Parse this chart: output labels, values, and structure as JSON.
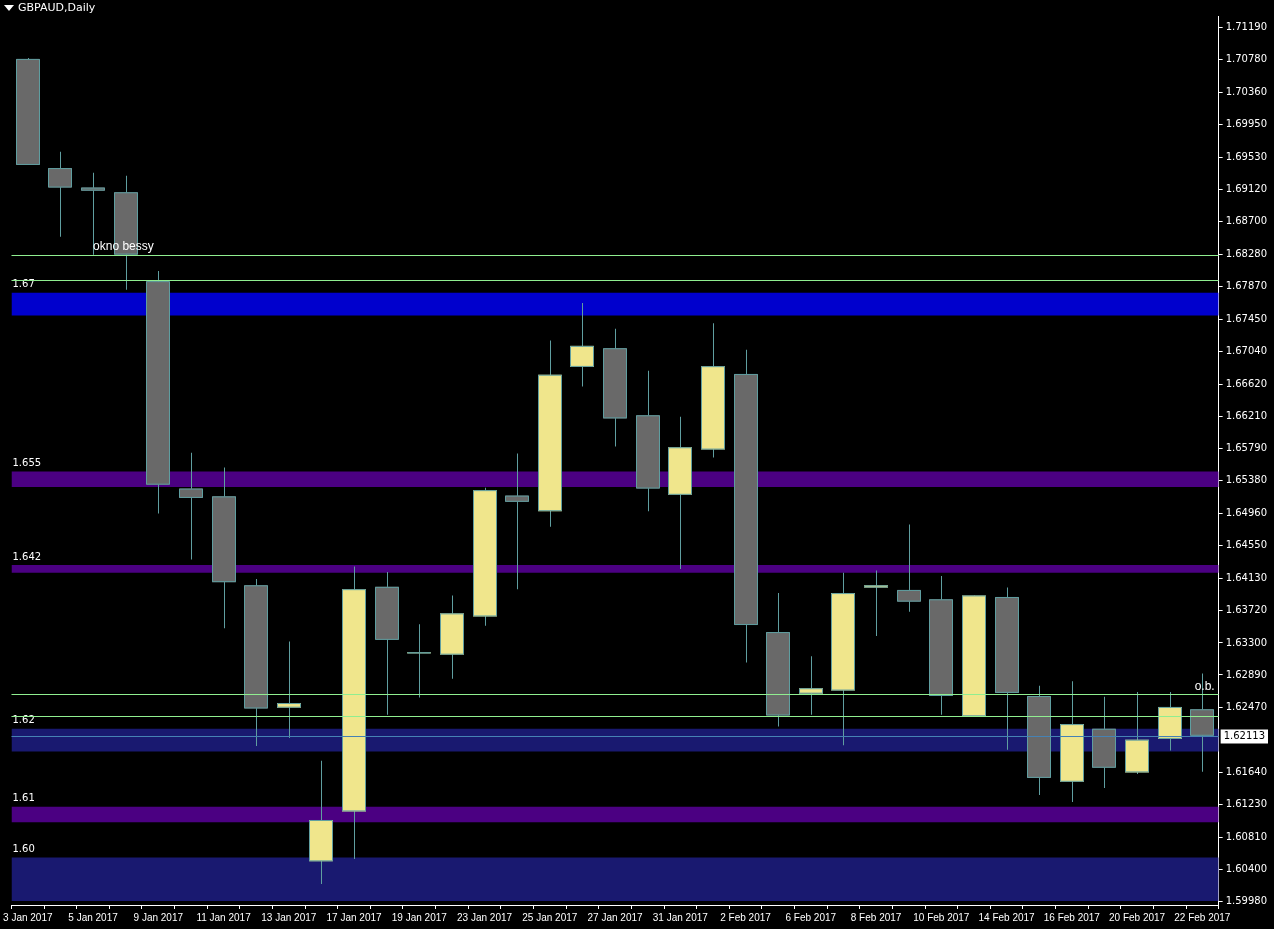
{
  "chart_data": {
    "type": "candlestick",
    "title": "GBPAUD,Daily",
    "categories": [
      "3 Jan 2017",
      null,
      "5 Jan 2017",
      null,
      "9 Jan 2017",
      null,
      "11 Jan 2017",
      null,
      "13 Jan 2017",
      null,
      "17 Jan 2017",
      null,
      "19 Jan 2017",
      null,
      "23 Jan 2017",
      null,
      "25 Jan 2017",
      null,
      "27 Jan 2017",
      null,
      "31 Jan 2017",
      null,
      "2 Feb 2017",
      null,
      "6 Feb 2017",
      null,
      "8 Feb 2017",
      null,
      "10 Feb 2017",
      null,
      "14 Feb 2017",
      null,
      "16 Feb 2017",
      null,
      "20 Feb 2017",
      null,
      "22 Feb 2017"
    ],
    "ohlc": [
      [
        1.7079,
        1.708,
        1.6943,
        1.6943
      ],
      [
        1.6939,
        1.696,
        1.6851,
        1.6914
      ],
      [
        1.6914,
        1.6933,
        1.6828,
        1.691
      ],
      [
        1.6908,
        1.6929,
        1.6783,
        1.6828
      ],
      [
        1.6794,
        1.6807,
        1.6496,
        1.6533
      ],
      [
        1.6528,
        1.6574,
        1.6437,
        1.6516
      ],
      [
        1.6518,
        1.6555,
        1.6349,
        1.6408
      ],
      [
        1.6404,
        1.6412,
        1.6198,
        1.6246
      ],
      [
        1.6247,
        1.6332,
        1.6208,
        1.6253
      ],
      [
        1.605,
        1.6179,
        1.6021,
        1.6103
      ],
      [
        1.6114,
        1.6428,
        1.6053,
        1.6399
      ],
      [
        1.6402,
        1.6421,
        1.6238,
        1.6334
      ],
      [
        1.6318,
        1.6354,
        1.626,
        1.6318
      ],
      [
        1.6315,
        1.6391,
        1.6284,
        1.6368
      ],
      [
        1.6364,
        1.6529,
        1.6352,
        1.6526
      ],
      [
        1.6519,
        1.6573,
        1.6399,
        1.6511
      ],
      [
        1.6499,
        1.6718,
        1.6479,
        1.6674
      ],
      [
        1.6684,
        1.6766,
        1.6659,
        1.6711
      ],
      [
        1.6708,
        1.6733,
        1.6582,
        1.6618
      ],
      [
        1.6622,
        1.6679,
        1.6499,
        1.6528
      ],
      [
        1.652,
        1.662,
        1.6425,
        1.6581
      ],
      [
        1.6578,
        1.674,
        1.6568,
        1.6685
      ],
      [
        1.6675,
        1.6706,
        1.6305,
        1.6353
      ],
      [
        1.6344,
        1.6394,
        1.6223,
        1.6237
      ],
      [
        1.6265,
        1.6313,
        1.6238,
        1.6272
      ],
      [
        1.6269,
        1.642,
        1.6199,
        1.6394
      ],
      [
        1.6401,
        1.6423,
        1.6339,
        1.6404
      ],
      [
        1.6398,
        1.6482,
        1.637,
        1.6383
      ],
      [
        1.6386,
        1.6416,
        1.6238,
        1.6262
      ],
      [
        1.6236,
        1.6391,
        1.6236,
        1.6391
      ],
      [
        1.6389,
        1.6401,
        1.6193,
        1.6266
      ],
      [
        1.6262,
        1.6275,
        1.6135,
        1.6157
      ],
      [
        1.6152,
        1.6281,
        1.6126,
        1.6226
      ],
      [
        1.622,
        1.6261,
        1.6144,
        1.617
      ],
      [
        1.6164,
        1.6267,
        1.6162,
        1.6206
      ],
      [
        1.6207,
        1.6267,
        1.6192,
        1.6248
      ],
      [
        1.6245,
        1.6291,
        1.6165,
        1.6211
      ]
    ],
    "colors": [
      "#696969",
      "#696969",
      "#696969",
      "#696969",
      "#696969",
      "#696969",
      "#696969",
      "#696969",
      "#f0e68c",
      "#f0e68c",
      "#f0e68c",
      "#696969",
      "#f0e68c",
      "#f0e68c",
      "#f0e68c",
      "#696969",
      "#f0e68c",
      "#f0e68c",
      "#696969",
      "#696969",
      "#f0e68c",
      "#f0e68c",
      "#696969",
      "#696969",
      "#f0e68c",
      "#f0e68c",
      "#f0e68c",
      "#696969",
      "#696969",
      "#f0e68c",
      "#696969",
      "#696969",
      "#f0e68c",
      "#696969",
      "#f0e68c",
      "#f0e68c",
      "#696969"
    ],
    "ylim": [
      1.5994,
      1.7134
    ],
    "yticks": [
      {
        "value": 1.7119,
        "label": "1.71190"
      },
      {
        "value": 1.7078,
        "label": "1.70780"
      },
      {
        "value": 1.7036,
        "label": "1.70360"
      },
      {
        "value": 1.6995,
        "label": "1.69950"
      },
      {
        "value": 1.6953,
        "label": "1.69530"
      },
      {
        "value": 1.6912,
        "label": "1.69120"
      },
      {
        "value": 1.687,
        "label": "1.68700"
      },
      {
        "value": 1.6828,
        "label": "1.68280"
      },
      {
        "value": 1.6787,
        "label": "1.67870"
      },
      {
        "value": 1.6745,
        "label": "1.67450"
      },
      {
        "value": 1.6704,
        "label": "1.67040"
      },
      {
        "value": 1.6662,
        "label": "1.66620"
      },
      {
        "value": 1.6621,
        "label": "1.66210"
      },
      {
        "value": 1.6579,
        "label": "1.65790"
      },
      {
        "value": 1.6538,
        "label": "1.65380"
      },
      {
        "value": 1.6496,
        "label": "1.64960"
      },
      {
        "value": 1.6455,
        "label": "1.64550"
      },
      {
        "value": 1.6413,
        "label": "1.64130"
      },
      {
        "value": 1.6372,
        "label": "1.63720"
      },
      {
        "value": 1.633,
        "label": "1.63300"
      },
      {
        "value": 1.6289,
        "label": "1.62890"
      },
      {
        "value": 1.6247,
        "label": "1.62470"
      },
      {
        "value": 1.6164,
        "label": "1.61640"
      },
      {
        "value": 1.6123,
        "label": "1.61230"
      },
      {
        "value": 1.6081,
        "label": "1.60810"
      },
      {
        "value": 1.604,
        "label": "1.60400"
      },
      {
        "value": 1.5998,
        "label": "1.59980"
      }
    ],
    "bands": [
      {
        "axis": "y",
        "from": 1.675,
        "to": 1.6779,
        "label": "1.67",
        "color": "#0000cd"
      },
      {
        "axis": "y",
        "from": 1.653,
        "to": 1.655,
        "label": "1.655",
        "color": "#4b0082"
      },
      {
        "axis": "y",
        "from": 1.642,
        "to": 1.643,
        "label": "1.642",
        "color": "#4b0082"
      },
      {
        "axis": "y",
        "from": 1.6191,
        "to": 1.622,
        "label": "1.62",
        "color": "#191970"
      },
      {
        "axis": "y",
        "from": 1.61,
        "to": 1.612,
        "label": "1.61",
        "color": "#4b0082"
      },
      {
        "axis": "y",
        "from": 1.5999,
        "to": 1.6055,
        "label": "1.60",
        "color": "#191970"
      }
    ],
    "ref_lines": [
      {
        "axis": "y",
        "value": 1.62113,
        "label": "1.62113",
        "color": "#4682b4"
      },
      {
        "axis": "y",
        "value": 1.6828,
        "color": "#90ee90"
      },
      {
        "axis": "y",
        "value": 1.6796,
        "color": "#90ee90"
      },
      {
        "axis": "y",
        "value": 1.6264,
        "color": "#90ee90"
      },
      {
        "axis": "y",
        "value": 1.6236,
        "color": "#90ee90"
      }
    ],
    "annotations": [
      {
        "text": "okno bessy",
        "x": "5 Jan 2017",
        "y": 1.6828
      },
      {
        "text": "o.b.",
        "y": 1.6264
      }
    ],
    "grid": false,
    "legend": false
  }
}
